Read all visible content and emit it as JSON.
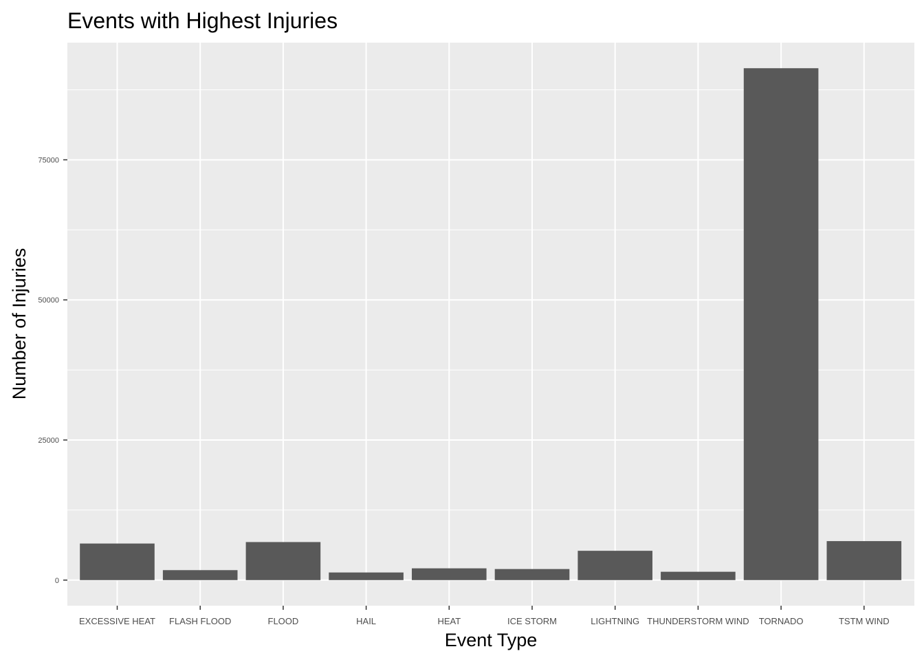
{
  "chart_data": {
    "type": "bar",
    "title": "Events with Highest Injuries",
    "xlabel": "Event Type",
    "ylabel": "Number of Injuries",
    "categories": [
      "EXCESSIVE HEAT",
      "FLASH FLOOD",
      "FLOOD",
      "HAIL",
      "HEAT",
      "ICE STORM",
      "LIGHTNING",
      "THUNDERSTORM WIND",
      "TORNADO",
      "TSTM WIND"
    ],
    "values": [
      6525,
      1777,
      6789,
      1361,
      2100,
      1975,
      5230,
      1488,
      91346,
      6957
    ],
    "yticks": [
      0,
      25000,
      50000,
      75000
    ],
    "ytick_labels": [
      "0",
      "25000",
      "50000",
      "75000"
    ],
    "ylim": [
      -4567,
      95913
    ],
    "grid": true,
    "colors": {
      "bar": "#595959",
      "panel": "#ebebeb",
      "grid": "#ffffff"
    }
  }
}
